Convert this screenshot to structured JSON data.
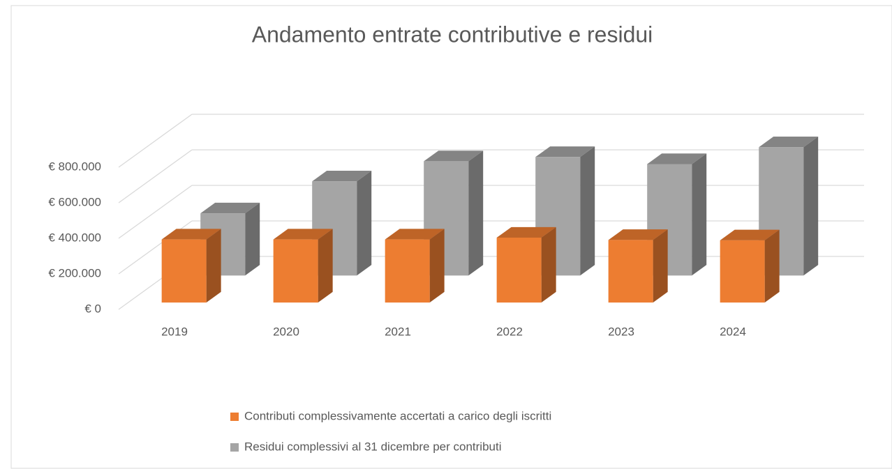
{
  "chart_data": {
    "type": "bar3d",
    "title": "Andamento entrate contributive e residui",
    "categories": [
      "2019",
      "2020",
      "2021",
      "2022",
      "2023",
      "2024"
    ],
    "series": [
      {
        "name": "Contributi complessivamente accertati a carico degli iscritti",
        "color": "#ED7D31",
        "values": [
          355000,
          355000,
          355000,
          365000,
          352000,
          350000
        ]
      },
      {
        "name": "Residui complessivi al 31 dicembre per contributi",
        "color": "#A5A5A5",
        "values": [
          350000,
          530000,
          643000,
          667000,
          627000,
          722000
        ]
      }
    ],
    "ylim": [
      0,
      800000
    ],
    "yticks": [
      {
        "value": 0,
        "label": "€ 0"
      },
      {
        "value": 200000,
        "label": "€ 200.000"
      },
      {
        "value": 400000,
        "label": "€ 400.000"
      },
      {
        "value": 600000,
        "label": "€ 600.000"
      },
      {
        "value": 800000,
        "label": "€ 800.000"
      }
    ],
    "grid": true
  }
}
